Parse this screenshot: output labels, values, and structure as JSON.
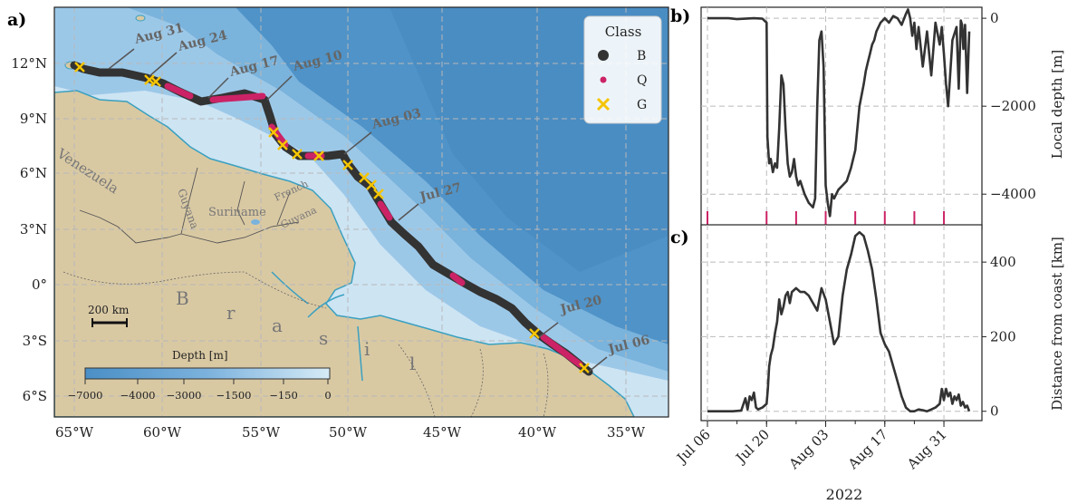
{
  "panel_labels": {
    "a": "a)",
    "b": "b)",
    "c": "c)"
  },
  "map": {
    "lon_ticks": [
      "65°W",
      "60°W",
      "55°W",
      "50°W",
      "45°W",
      "40°W",
      "35°W"
    ],
    "lat_ticks": [
      "12°N",
      "9°N",
      "6°N",
      "3°N",
      "0°",
      "3°S",
      "6°S"
    ],
    "countries": [
      "Venezuela",
      "Guyana",
      "Suriname",
      "French",
      "Guyana"
    ],
    "brasil_letters": [
      "B",
      "r",
      "a",
      "s",
      "i",
      "l"
    ],
    "scale_bar_label": "200 km",
    "legend": {
      "title": "Class",
      "items": [
        {
          "label": "B",
          "color": "#333333",
          "marker": "circle"
        },
        {
          "label": "Q",
          "color": "#cc2366",
          "marker": "small-circle"
        },
        {
          "label": "G",
          "color": "#f5c400",
          "marker": "x"
        }
      ]
    },
    "colorbar": {
      "title": "Depth [m]",
      "ticks": [
        "−7000",
        "−4000",
        "−3000",
        "−1500",
        "−150",
        "0"
      ]
    },
    "date_annotations": [
      "Aug 31",
      "Aug 24",
      "Aug 17",
      "Aug 10",
      "Aug 03",
      "Jul 27",
      "Jul 20",
      "Jul 06"
    ]
  },
  "chart_data": [
    {
      "panel": "b",
      "type": "line",
      "ylabel": "Local depth [m]",
      "ylim": [
        -4800,
        250
      ],
      "yticks": [
        0,
        -2000,
        -4000
      ],
      "ytick_labels": [
        "0",
        "−2000",
        "−4000"
      ],
      "x_days": [
        0,
        1,
        3,
        5,
        7,
        9,
        11,
        13,
        14,
        14.2,
        14.6,
        15,
        15.5,
        16,
        16.5,
        17,
        17.5,
        18,
        18.5,
        19,
        19.5,
        20,
        20.5,
        21,
        21.5,
        22,
        23,
        24,
        25,
        25.5,
        26,
        26.5,
        27,
        27.5,
        28,
        28.5,
        29,
        29.5,
        30,
        31,
        32,
        33,
        34,
        35,
        36,
        37,
        37.5,
        38,
        38.5,
        39,
        39.5,
        40,
        41,
        42,
        43,
        44,
        45,
        46,
        47,
        47.5,
        48,
        48.5,
        49,
        49.5,
        50,
        51,
        52,
        53,
        54,
        55,
        55.5,
        56,
        56.5,
        57,
        58,
        59,
        59.5,
        60,
        60.3,
        60.6,
        61,
        61.5,
        62
      ],
      "y": [
        0,
        0,
        0,
        0,
        -20,
        -10,
        0,
        -10,
        -100,
        -2700,
        -3300,
        -3200,
        -3500,
        -3300,
        -3400,
        -2500,
        -1300,
        -1500,
        -2500,
        -3300,
        -3600,
        -3500,
        -3200,
        -3600,
        -3800,
        -3700,
        -4000,
        -4200,
        -4300,
        -4100,
        -2000,
        -500,
        -300,
        -1100,
        -3800,
        -4200,
        -4500,
        -4000,
        -4100,
        -3900,
        -3800,
        -3700,
        -3400,
        -3000,
        -2000,
        -1500,
        -1200,
        -1000,
        -800,
        -600,
        -500,
        -300,
        -100,
        0,
        -100,
        50,
        0,
        -150,
        100,
        200,
        0,
        -400,
        -100,
        -700,
        -200,
        -1100,
        -300,
        -1300,
        -100,
        -600,
        -200,
        -800,
        -1500,
        -2000,
        -500,
        -200,
        -1600,
        -50,
        -150,
        -700,
        -150,
        -1700,
        -300
      ],
      "tick_marks_days": [
        0,
        14,
        21,
        28,
        35,
        42,
        49,
        56
      ],
      "tick_mark_color": "#cc2366",
      "line_color": "#333333"
    },
    {
      "panel": "c",
      "type": "line",
      "xlabel": "2022",
      "ylabel": "Distance from coast [km]",
      "ylim": [
        -25,
        500
      ],
      "yticks": [
        0,
        200,
        400
      ],
      "ytick_labels": [
        "0",
        "200",
        "400"
      ],
      "x_days": [
        0,
        3,
        6,
        8,
        9,
        9.5,
        10,
        10.5,
        11,
        11.5,
        12,
        13,
        14,
        14.3,
        14.6,
        15,
        15.5,
        16,
        16.5,
        17,
        17.5,
        18,
        18.5,
        19,
        19.5,
        20,
        21,
        22,
        23,
        24,
        25,
        26,
        27,
        28,
        29,
        30,
        31,
        32,
        33,
        34,
        35,
        36,
        37,
        38,
        39,
        40,
        41,
        42,
        43,
        44,
        45,
        46,
        47,
        48,
        49,
        50,
        51,
        52,
        53,
        54,
        55,
        55.5,
        56,
        56.5,
        57,
        57.5,
        58,
        58.5,
        59,
        59.5,
        60,
        60.5,
        61,
        61.5,
        62
      ],
      "y": [
        0,
        0,
        0,
        2,
        35,
        5,
        40,
        30,
        50,
        10,
        5,
        10,
        20,
        60,
        120,
        150,
        170,
        210,
        240,
        300,
        260,
        280,
        310,
        320,
        290,
        320,
        330,
        320,
        320,
        310,
        290,
        270,
        330,
        300,
        240,
        180,
        200,
        310,
        380,
        420,
        470,
        480,
        470,
        430,
        380,
        300,
        210,
        180,
        160,
        120,
        80,
        40,
        10,
        0,
        0,
        5,
        3,
        0,
        5,
        10,
        20,
        60,
        30,
        60,
        40,
        50,
        20,
        40,
        30,
        45,
        15,
        25,
        10,
        15,
        0
      ],
      "x_ticks_days": [
        0,
        14,
        28,
        42,
        56
      ],
      "x_tick_labels": [
        "Jul 06",
        "Jul 20",
        "Aug 03",
        "Aug 17",
        "Aug 31"
      ],
      "line_color": "#333333"
    }
  ]
}
